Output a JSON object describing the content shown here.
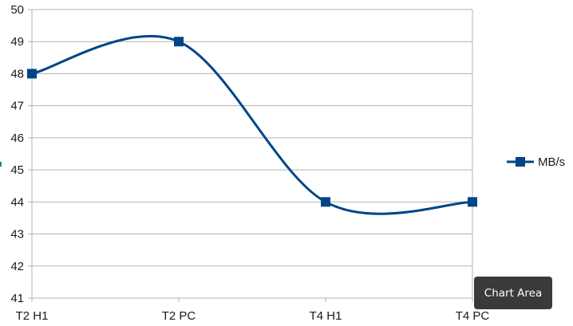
{
  "chart_data": {
    "type": "line",
    "smooth": true,
    "categories": [
      "T2 H1",
      "T2 PC",
      "T4 H1",
      "T4 PC"
    ],
    "series": [
      {
        "name": "MB/s",
        "values": [
          48,
          49,
          44,
          44
        ],
        "color": "#004586",
        "marker": "square"
      }
    ],
    "ylim": [
      41,
      50
    ],
    "yticks": [
      41,
      42,
      43,
      44,
      45,
      46,
      47,
      48,
      49,
      50
    ],
    "grid": true,
    "legend_position": "right",
    "title": "",
    "xlabel": "",
    "ylabel": ""
  },
  "tooltip": {
    "text": "Chart Area"
  }
}
